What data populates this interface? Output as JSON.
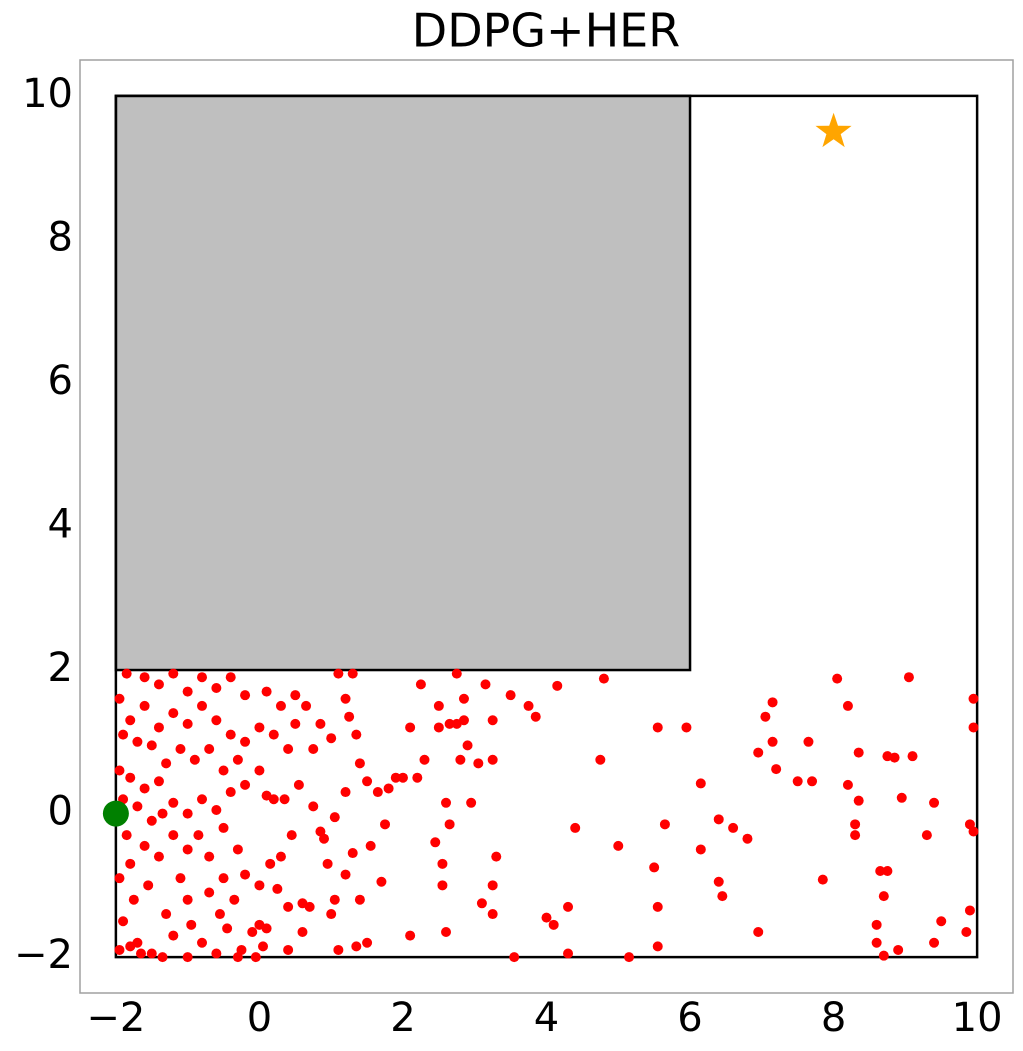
{
  "chart_data": {
    "type": "scatter",
    "title": "DDPG+HER",
    "xlim": [
      -2.5,
      10.5
    ],
    "ylim": [
      -2.5,
      10.5
    ],
    "xticks": [
      {
        "value": -2,
        "label": "−2"
      },
      0,
      2,
      4,
      6,
      8,
      10
    ],
    "yticks": [
      {
        "value": -2,
        "label": "−2"
      },
      0,
      2,
      4,
      6,
      8,
      10
    ],
    "grid": false,
    "color": "#ff0000",
    "arena": {
      "x": [
        -2,
        10
      ],
      "y": [
        -2,
        10
      ]
    },
    "obstacle": {
      "x": [
        -2,
        6
      ],
      "y": [
        2,
        10
      ],
      "color": "#bfbfbf"
    },
    "start": {
      "x": -2,
      "y": 0,
      "color": "#008000"
    },
    "goal": {
      "x": 8,
      "y": 9.5,
      "color": "#ffa500"
    },
    "x": [
      8.05,
      9.05,
      8.2,
      7.15,
      7.05,
      6.95,
      7.15,
      7.65,
      8.35,
      8.75,
      8.85,
      9.1,
      9.95,
      9.95,
      7.5,
      7.7,
      7.2,
      8.2,
      8.95,
      9.4,
      8.35,
      8.3,
      8.3,
      9.3,
      9.9,
      9.95,
      6.15,
      6.4,
      6.6,
      6.8,
      5.65,
      6.15,
      6.4,
      6.45,
      7.85,
      8.65,
      8.75,
      8.7,
      8.6,
      9.5,
      9.9,
      9.85,
      6.95,
      8.6,
      8.9,
      8.7,
      9.4,
      5.55,
      5.55,
      5.5,
      5.55,
      5.95,
      4.8,
      4.75,
      4.15,
      3.5,
      3.75,
      3.85,
      4.4,
      5.0,
      5.15,
      4.3,
      4.3,
      4.0,
      4.1,
      3.25,
      3.25,
      3.1,
      3.3,
      3.55,
      2.6,
      2.1,
      2.55,
      2.55,
      3.25,
      2.85,
      2.75,
      2.65,
      2.5,
      2.5,
      2.85,
      2.75,
      3.15,
      2.25,
      2.1,
      2.3,
      2.8,
      3.05,
      2.0,
      1.9,
      2.9,
      3.25,
      2.6,
      2.65,
      2.95,
      2.45,
      1.75,
      1.65,
      1.5,
      1.7,
      1.5,
      1.4,
      1.3,
      1.2,
      1.1,
      1.35,
      1.05,
      1.0,
      0.95,
      0.9,
      1.05,
      1.2,
      1.4,
      1.35,
      1.25,
      1.2,
      1.3,
      1.1,
      1.0,
      0.85,
      0.75,
      0.65,
      0.5,
      0.55,
      0.35,
      0.2,
      0.1,
      0.45,
      0.3,
      0.15,
      0.25,
      0.4,
      0.6,
      0.7,
      0.6,
      0.4,
      0.05,
      0.0,
      -0.1,
      -0.25,
      -0.3,
      -0.05,
      0.1,
      0.0,
      -0.2,
      -0.35,
      -0.45,
      -0.55,
      -0.7,
      -0.8,
      -0.95,
      -1.0,
      -1.1,
      -1.2,
      -1.3,
      -1.4,
      -1.5,
      -1.55,
      -1.6,
      -1.7,
      -1.75,
      -1.8,
      -1.85,
      -1.9,
      -1.95,
      -1.95,
      -1.8,
      -1.65,
      -1.35,
      -1.0,
      -0.6,
      -0.3,
      -0.5,
      -0.7,
      -0.85,
      -1.0,
      -1.2,
      -1.35,
      -1.5,
      -1.7,
      -1.9,
      -1.95,
      -1.8,
      -1.6,
      -1.4,
      -1.2,
      -1.0,
      -0.8,
      -0.6,
      -0.4,
      -0.2,
      0.0,
      -0.3,
      -0.5,
      -0.7,
      -0.9,
      -1.1,
      -1.3,
      -1.5,
      -1.7,
      -1.9,
      -1.95,
      -1.8,
      -1.6,
      -1.4,
      -1.2,
      -1.0,
      -0.8,
      -0.6,
      -0.4,
      -0.2,
      0.0,
      0.2,
      0.4,
      0.5,
      0.3,
      0.1,
      -0.2,
      -0.4,
      -0.6,
      -0.8,
      -1.0,
      -1.2,
      -1.4,
      -1.6,
      -1.85,
      -0.5,
      0.75,
      0.85,
      1.55,
      1.8,
      2.2
    ],
    "values": [
      1.88,
      1.9,
      1.5,
      1.55,
      1.35,
      0.85,
      1.0,
      1.0,
      0.85,
      0.8,
      0.78,
      0.8,
      1.6,
      1.2,
      0.45,
      0.45,
      0.62,
      0.4,
      0.22,
      0.15,
      0.18,
      -0.15,
      -0.3,
      -0.3,
      -0.15,
      -0.25,
      0.42,
      -0.08,
      -0.2,
      -0.35,
      -0.15,
      -0.5,
      -0.95,
      -1.15,
      -0.92,
      -0.8,
      -0.8,
      -1.15,
      -1.55,
      -1.5,
      -1.35,
      -1.65,
      -1.65,
      -1.8,
      -1.9,
      -1.98,
      -1.8,
      -1.3,
      -1.85,
      -0.75,
      1.2,
      1.2,
      1.88,
      0.75,
      1.78,
      1.65,
      1.5,
      1.35,
      -0.2,
      -0.45,
      -2.0,
      -1.3,
      -1.95,
      -1.45,
      -1.55,
      -1.0,
      -1.4,
      -1.25,
      -0.6,
      -2.0,
      -1.65,
      -1.7,
      -0.7,
      -1.0,
      1.3,
      1.3,
      1.25,
      1.25,
      1.2,
      1.5,
      1.6,
      1.95,
      1.8,
      1.8,
      1.2,
      0.75,
      0.75,
      0.7,
      0.5,
      0.5,
      0.95,
      0.75,
      0.15,
      -0.15,
      0.15,
      -0.4,
      -0.15,
      0.3,
      0.45,
      -0.95,
      -1.8,
      -1.2,
      -0.55,
      -0.85,
      -1.9,
      -1.85,
      -1.2,
      -1.4,
      -0.7,
      -0.35,
      -0.05,
      0.3,
      0.7,
      1.1,
      1.35,
      1.6,
      1.95,
      1.95,
      1.05,
      1.25,
      0.9,
      1.5,
      1.25,
      0.4,
      0.2,
      0.2,
      0.25,
      -0.3,
      -0.6,
      -0.7,
      -1.05,
      -1.3,
      -1.25,
      -1.3,
      -1.65,
      -1.9,
      -1.85,
      -1.55,
      -1.65,
      -1.9,
      -2.0,
      -2.0,
      -1.6,
      -1.0,
      -0.85,
      -1.2,
      -1.6,
      -1.4,
      -1.1,
      -1.8,
      -1.55,
      -1.2,
      -0.9,
      -1.7,
      -1.4,
      -0.6,
      -1.95,
      -1.0,
      -0.45,
      -1.8,
      -1.2,
      -0.7,
      -0.3,
      -1.5,
      -0.9,
      -1.9,
      -1.85,
      -1.95,
      -2.0,
      -2.0,
      -1.95,
      -0.5,
      -0.2,
      -0.6,
      -0.3,
      -0.5,
      -0.3,
      0.0,
      -0.1,
      0.1,
      0.2,
      0.6,
      0.5,
      0.35,
      0.45,
      0.15,
      0.0,
      0.2,
      0.05,
      0.3,
      0.4,
      0.6,
      0.75,
      0.6,
      0.9,
      0.75,
      0.9,
      0.7,
      0.95,
      1.0,
      1.1,
      1.6,
      1.3,
      1.5,
      1.2,
      1.4,
      1.25,
      1.5,
      1.3,
      1.1,
      1.0,
      1.2,
      1.1,
      0.9,
      1.65,
      1.5,
      1.7,
      1.65,
      1.9,
      1.75,
      1.9,
      1.7,
      1.95,
      1.8,
      1.9,
      1.95,
      -0.9,
      0.1,
      -0.25,
      -0.45,
      0.35,
      0.5
    ]
  }
}
